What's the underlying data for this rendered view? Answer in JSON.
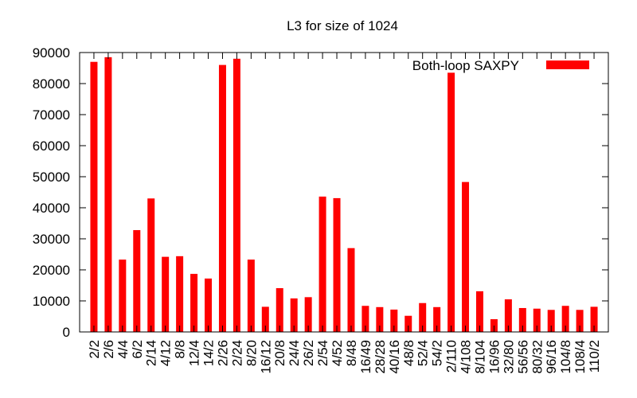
{
  "chart_data": {
    "type": "bar",
    "title": "L3 for size of 1024",
    "xlabel": "",
    "ylabel": "",
    "ylim": [
      0,
      90000
    ],
    "yticks": [
      0,
      10000,
      20000,
      30000,
      40000,
      50000,
      60000,
      70000,
      80000,
      90000
    ],
    "grid": false,
    "legend_position": "top-right",
    "bar_color": "#ff0000",
    "categories": [
      "2/2",
      "2/6",
      "4/4",
      "6/2",
      "2/14",
      "4/12",
      "8/8",
      "12/4",
      "14/2",
      "2/26",
      "2/24",
      "8/20",
      "16/12",
      "20/8",
      "24/4",
      "26/2",
      "2/54",
      "4/52",
      "8/48",
      "16/49",
      "28/28",
      "40/16",
      "48/8",
      "52/4",
      "54/2",
      "2/110",
      "4/108",
      "8/104",
      "16/96",
      "32/80",
      "56/56",
      "80/32",
      "96/16",
      "104/8",
      "108/4",
      "110/2"
    ],
    "series": [
      {
        "name": "Both-loop SAXPY",
        "values": [
          87000,
          88500,
          23300,
          32800,
          43000,
          24200,
          24400,
          18700,
          17200,
          86000,
          88000,
          23300,
          8100,
          14100,
          10800,
          11200,
          43600,
          43100,
          27000,
          8400,
          8000,
          7200,
          5200,
          9300,
          8000,
          83500,
          48300,
          13100,
          4100,
          10500,
          7700,
          7500,
          7100,
          8400,
          7100,
          8100
        ]
      }
    ]
  }
}
